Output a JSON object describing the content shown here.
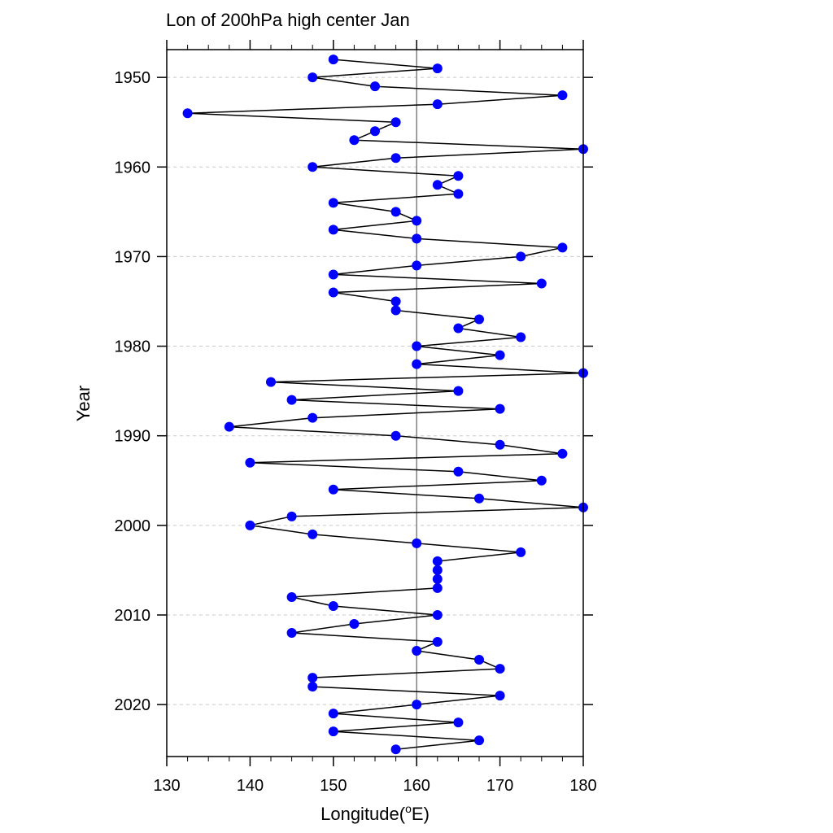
{
  "chart_data": {
    "type": "line",
    "orientation": "horizontal",
    "title": "Lon of 200hPa high center Jan",
    "xlabel": "Longitude(°E)",
    "xlabel_parts": {
      "before": "Longitude(",
      "superscript": "o",
      "after": "E)"
    },
    "ylabel": "Year",
    "xlim": [
      130,
      180
    ],
    "ylim": [
      1946.9,
      2025.8
    ],
    "y_reversed": true,
    "x_ticks": [
      130,
      140,
      150,
      160,
      170,
      180
    ],
    "x_tick_labels": [
      "130",
      "140",
      "150",
      "160",
      "170",
      "180"
    ],
    "x_minor_step": 2.5,
    "y_ticks": [
      1950,
      1960,
      1970,
      1980,
      1990,
      2000,
      2010,
      2020
    ],
    "y_tick_labels": [
      "1950",
      "1960",
      "1970",
      "1980",
      "1990",
      "2000",
      "2010",
      "2020"
    ],
    "grid": {
      "horizontal": "dashed at major year ticks",
      "vertical": "none"
    },
    "reference_line": {
      "x": 160
    },
    "line_color": "#000000",
    "marker_color": "#0000ff",
    "reference_line_color": "#808080",
    "grid_color": "#c8c8c8",
    "series": [
      {
        "x": [
          1948,
          1949,
          1950,
          1951,
          1952,
          1953,
          1954,
          1955,
          1956,
          1957,
          1958,
          1959,
          1960,
          1961,
          1962,
          1963,
          1964,
          1965,
          1966,
          1967,
          1968,
          1969,
          1970,
          1971,
          1972,
          1973,
          1974,
          1975,
          1976,
          1977,
          1978,
          1979,
          1980,
          1981,
          1982,
          1983,
          1984,
          1985,
          1986,
          1987,
          1988,
          1989,
          1990,
          1991,
          1992,
          1993,
          1994,
          1995,
          1996,
          1997,
          1998,
          1999,
          2000,
          2001,
          2002,
          2003,
          2004,
          2005,
          2006,
          2007,
          2008,
          2009,
          2010,
          2011,
          2012,
          2013,
          2014,
          2015,
          2016,
          2017,
          2018,
          2019,
          2020,
          2021,
          2022,
          2023,
          2024,
          2025
        ],
        "values": [
          150,
          162.5,
          147.5,
          155,
          177.5,
          162.5,
          132.5,
          157.5,
          155,
          152.5,
          180,
          157.5,
          147.5,
          165,
          162.5,
          165,
          150,
          157.5,
          160,
          150,
          160,
          177.5,
          172.5,
          160,
          150,
          175,
          150,
          157.5,
          157.5,
          167.5,
          165,
          172.5,
          160,
          170,
          160,
          180,
          142.5,
          165,
          145,
          170,
          147.5,
          137.5,
          157.5,
          170,
          177.5,
          140,
          165,
          175,
          150,
          167.5,
          180,
          145,
          140,
          147.5,
          160,
          172.5,
          162.5,
          162.5,
          162.5,
          162.5,
          145,
          150,
          162.5,
          152.5,
          145,
          162.5,
          160,
          167.5,
          170,
          147.5,
          147.5,
          170,
          160,
          150,
          165,
          150,
          167.5,
          157.5
        ]
      }
    ]
  }
}
